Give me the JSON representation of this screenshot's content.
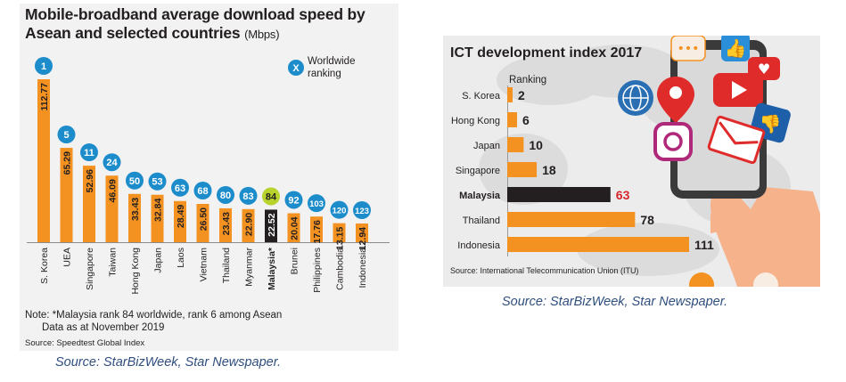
{
  "left": {
    "title": "Mobile-broadband average download speed by Asean and selected countries",
    "unit": "(Mbps)",
    "legend_symbol": "X",
    "legend_label_1": "Worldwide",
    "legend_label_2": "ranking",
    "note_line1": "Note: *Malaysia rank 84 worldwide, rank 6 among Asean",
    "note_line2": "Data as at November 2019",
    "source": "Source: Speedtest Global Index",
    "caption": "Source: StarBizWeek, Star Newspaper.",
    "colors": {
      "bar": "#f39220",
      "highlight": "#231f20",
      "rank_badge": "#1c8ccb",
      "highlight_badge": "#b9d32d"
    }
  },
  "right": {
    "title": "ICT development index 2017",
    "ranking_label": "Ranking",
    "source": "Source: International Telecommunication Union (ITU)",
    "caption": "Source: StarBizWeek, Star Newspaper.",
    "colors": {
      "bar": "#f39220",
      "highlight": "#231f20",
      "highlight_text": "#d7262e"
    }
  },
  "chart_data": [
    {
      "type": "bar",
      "title": "Mobile-broadband average download speed by Asean and selected countries (Mbps)",
      "categories": [
        "S. Korea",
        "UEA",
        "Singapore",
        "Taiwan",
        "Hong Kong",
        "Japan",
        "Laos",
        "Vietnam",
        "Thailand",
        "Myanmar",
        "Malaysia*",
        "Brunei",
        "Philippines",
        "Cambodia",
        "Indonesia"
      ],
      "values": [
        112.77,
        65.29,
        52.96,
        46.09,
        33.43,
        32.84,
        28.49,
        26.5,
        23.43,
        22.9,
        22.52,
        20.04,
        17.76,
        13.15,
        12.94
      ],
      "value_labels": [
        "112.77",
        "65.29",
        "52.96",
        "46.09",
        "33.43",
        "32.84",
        "28.49",
        "26.50",
        "23.43",
        "22.90",
        "22.52",
        "20.04",
        "17.76",
        "13.15",
        "12.94"
      ],
      "worldwide_ranking": [
        "1",
        "5",
        "11",
        "24",
        "50",
        "53",
        "63",
        "68",
        "80",
        "83",
        "84",
        "92",
        "103",
        "120",
        "123"
      ],
      "highlight_index": 10,
      "ylim": [
        0,
        112.77
      ]
    },
    {
      "type": "bar",
      "orientation": "horizontal",
      "title": "ICT development index 2017",
      "categories": [
        "S. Korea",
        "Hong Kong",
        "Japan",
        "Singapore",
        "Malaysia",
        "Thailand",
        "Indonesia"
      ],
      "values": [
        2,
        6,
        10,
        18,
        63,
        78,
        111
      ],
      "value_labels": [
        "2",
        "6",
        "10",
        "18",
        "63",
        "78",
        "111"
      ],
      "highlight_index": 4
    }
  ]
}
